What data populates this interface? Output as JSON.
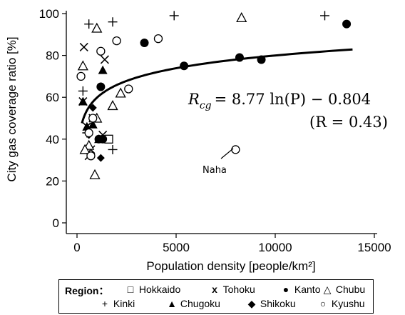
{
  "chart_data": {
    "type": "scatter",
    "xlabel": "Population density [people/km²]",
    "ylabel": "City gas coverage ratio [%]",
    "xlim": [
      0,
      15000
    ],
    "ylim": [
      0,
      100
    ],
    "xticks": [
      "0",
      "5000",
      "10000",
      "15000"
    ],
    "yticks": [
      "0",
      "20",
      "40",
      "60",
      "80",
      "100"
    ],
    "fit": {
      "equation_lhs": "R",
      "equation_sub": "cg",
      "equation_rhs": "= 8.77 ln(P) − 0.804",
      "r_text": "(R = 0.43)",
      "a": 8.77,
      "b": -0.804,
      "x_range": [
        250,
        13900
      ]
    },
    "annotations": [
      {
        "text": "Naha",
        "x": 8000,
        "y": 35
      }
    ],
    "legend": {
      "title": "Region：",
      "entries": [
        {
          "name": "Hokkaido",
          "symbol": "□",
          "marker": "square-open"
        },
        {
          "name": "Tohoku",
          "symbol": "x",
          "marker": "x"
        },
        {
          "name": "Kanto",
          "symbol": "●",
          "marker": "circle-filled"
        },
        {
          "name": "Chubu",
          "symbol": "△",
          "marker": "triangle-open"
        },
        {
          "name": "Kinki",
          "symbol": "+",
          "marker": "plus"
        },
        {
          "name": "Chugoku",
          "symbol": "▲",
          "marker": "triangle-filled"
        },
        {
          "name": "Shikoku",
          "symbol": "◆",
          "marker": "diamond-filled"
        },
        {
          "name": "Kyushu",
          "symbol": "○",
          "marker": "circle-open"
        }
      ]
    },
    "series": [
      {
        "region": "Hokkaido",
        "marker": "square-open",
        "points": [
          [
            1600,
            40
          ]
        ]
      },
      {
        "region": "Tohoku",
        "marker": "x",
        "points": [
          [
            350,
            84
          ],
          [
            1400,
            78
          ],
          [
            600,
            32
          ],
          [
            700,
            35
          ],
          [
            800,
            50
          ],
          [
            500,
            46
          ],
          [
            300,
            58
          ],
          [
            1300,
            42
          ]
        ]
      },
      {
        "region": "Kanto",
        "marker": "circle-filled",
        "points": [
          [
            3400,
            86
          ],
          [
            5400,
            75
          ],
          [
            8200,
            79
          ],
          [
            9300,
            78
          ],
          [
            13600,
            95
          ],
          [
            1200,
            65
          ],
          [
            1100,
            40
          ],
          [
            1300,
            40
          ]
        ]
      },
      {
        "region": "Chubu",
        "marker": "triangle-open",
        "points": [
          [
            300,
            75
          ],
          [
            1000,
            93
          ],
          [
            8300,
            98
          ],
          [
            2200,
            62
          ],
          [
            1800,
            56
          ],
          [
            600,
            37
          ],
          [
            900,
            23
          ],
          [
            1000,
            50
          ],
          [
            400,
            35
          ]
        ]
      },
      {
        "region": "Kinki",
        "marker": "plus",
        "points": [
          [
            600,
            95
          ],
          [
            1800,
            96
          ],
          [
            4900,
            99
          ],
          [
            12500,
            99
          ],
          [
            300,
            63
          ],
          [
            1800,
            35
          ],
          [
            500,
            43
          ]
        ]
      },
      {
        "region": "Chugoku",
        "marker": "triangle-filled",
        "points": [
          [
            300,
            58
          ],
          [
            1300,
            73
          ],
          [
            500,
            46
          ],
          [
            800,
            47
          ],
          [
            1100,
            40
          ]
        ]
      },
      {
        "region": "Shikoku",
        "marker": "diamond-filled",
        "points": [
          [
            800,
            55
          ],
          [
            1200,
            31
          ],
          [
            600,
            42
          ]
        ]
      },
      {
        "region": "Kyushu",
        "marker": "circle-open",
        "points": [
          [
            2000,
            87
          ],
          [
            4100,
            88
          ],
          [
            1200,
            82
          ],
          [
            200,
            70
          ],
          [
            2600,
            64
          ],
          [
            800,
            50
          ],
          [
            600,
            43
          ],
          [
            700,
            32
          ],
          [
            8000,
            35
          ]
        ]
      }
    ]
  }
}
